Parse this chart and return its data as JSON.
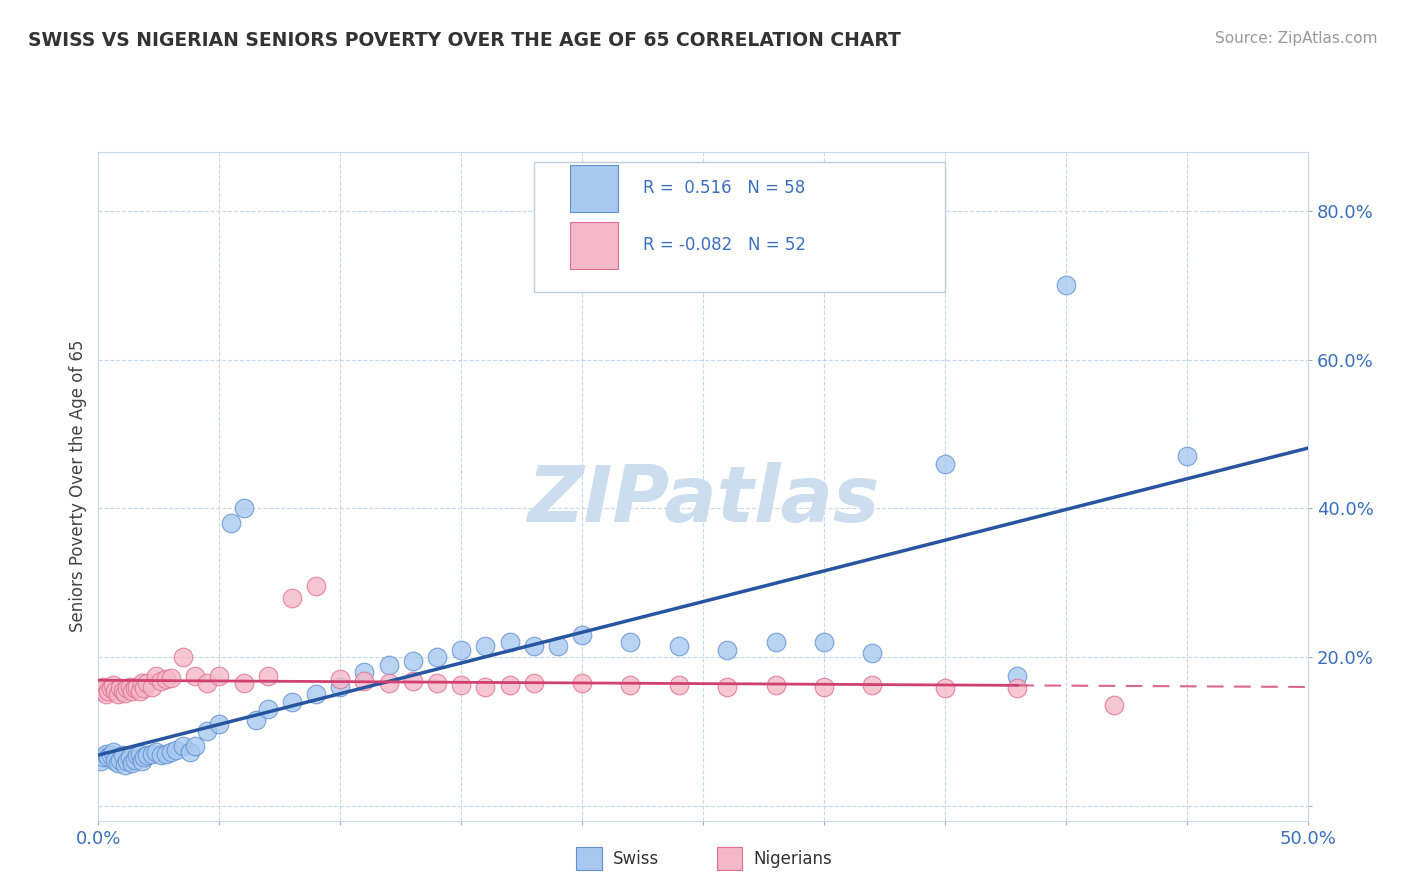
{
  "title": "SWISS VS NIGERIAN SENIORS POVERTY OVER THE AGE OF 65 CORRELATION CHART",
  "source": "Source: ZipAtlas.com",
  "ylabel": "Seniors Poverty Over the Age of 65",
  "xlim": [
    0.0,
    0.5
  ],
  "ylim": [
    -0.02,
    0.88
  ],
  "xticks": [
    0.0,
    0.05,
    0.1,
    0.15,
    0.2,
    0.25,
    0.3,
    0.35,
    0.4,
    0.45,
    0.5
  ],
  "xtick_labels": [
    "0.0%",
    "",
    "",
    "",
    "",
    "",
    "",
    "",
    "",
    "",
    "50.0%"
  ],
  "ytick_positions": [
    0.0,
    0.2,
    0.4,
    0.6,
    0.8
  ],
  "ytick_labels": [
    "",
    "20.0%",
    "40.0%",
    "60.0%",
    "80.0%"
  ],
  "swiss_color": "#a8c8f0",
  "nigerian_color": "#f4b8c8",
  "swiss_edge_color": "#6090d0",
  "nigerian_edge_color": "#e07090",
  "swiss_line_color": "#2855a0",
  "nigerian_line_color": "#d04070",
  "swiss_R": 0.516,
  "swiss_N": 58,
  "nigerian_R": -0.082,
  "nigerian_N": 52,
  "watermark": "ZIPatlas",
  "watermark_color": "#ccddef",
  "legend_swiss": "Swiss",
  "legend_nigerian": "Nigerians",
  "background_color": "#ffffff",
  "grid_color": "#c0d4e8",
  "swiss_x": [
    0.001,
    0.002,
    0.003,
    0.004,
    0.005,
    0.006,
    0.007,
    0.008,
    0.009,
    0.01,
    0.011,
    0.012,
    0.013,
    0.014,
    0.015,
    0.016,
    0.017,
    0.018,
    0.019,
    0.02,
    0.022,
    0.024,
    0.026,
    0.028,
    0.03,
    0.032,
    0.035,
    0.038,
    0.04,
    0.045,
    0.05,
    0.055,
    0.06,
    0.065,
    0.07,
    0.08,
    0.09,
    0.1,
    0.11,
    0.12,
    0.13,
    0.14,
    0.15,
    0.16,
    0.17,
    0.18,
    0.19,
    0.2,
    0.22,
    0.24,
    0.26,
    0.28,
    0.3,
    0.32,
    0.35,
    0.38,
    0.4,
    0.45
  ],
  "swiss_y": [
    0.06,
    0.065,
    0.07,
    0.065,
    0.068,
    0.072,
    0.06,
    0.058,
    0.062,
    0.068,
    0.055,
    0.06,
    0.065,
    0.058,
    0.062,
    0.068,
    0.07,
    0.06,
    0.065,
    0.068,
    0.07,
    0.072,
    0.068,
    0.07,
    0.072,
    0.075,
    0.08,
    0.072,
    0.08,
    0.1,
    0.11,
    0.38,
    0.4,
    0.115,
    0.13,
    0.14,
    0.15,
    0.16,
    0.18,
    0.19,
    0.195,
    0.2,
    0.21,
    0.215,
    0.22,
    0.215,
    0.215,
    0.23,
    0.22,
    0.215,
    0.21,
    0.22,
    0.22,
    0.205,
    0.46,
    0.175,
    0.7,
    0.47
  ],
  "nigerian_x": [
    0.001,
    0.002,
    0.003,
    0.004,
    0.005,
    0.006,
    0.007,
    0.008,
    0.009,
    0.01,
    0.011,
    0.012,
    0.013,
    0.014,
    0.015,
    0.016,
    0.017,
    0.018,
    0.019,
    0.02,
    0.022,
    0.024,
    0.026,
    0.028,
    0.03,
    0.035,
    0.04,
    0.045,
    0.05,
    0.06,
    0.07,
    0.08,
    0.09,
    0.1,
    0.11,
    0.12,
    0.13,
    0.14,
    0.15,
    0.16,
    0.17,
    0.18,
    0.2,
    0.22,
    0.24,
    0.26,
    0.28,
    0.3,
    0.32,
    0.35,
    0.38,
    0.42
  ],
  "nigerian_y": [
    0.155,
    0.16,
    0.15,
    0.155,
    0.158,
    0.162,
    0.155,
    0.15,
    0.158,
    0.155,
    0.152,
    0.158,
    0.16,
    0.155,
    0.158,
    0.16,
    0.155,
    0.165,
    0.158,
    0.165,
    0.16,
    0.175,
    0.168,
    0.17,
    0.172,
    0.2,
    0.175,
    0.165,
    0.175,
    0.165,
    0.175,
    0.28,
    0.295,
    0.17,
    0.168,
    0.165,
    0.168,
    0.165,
    0.162,
    0.16,
    0.162,
    0.165,
    0.165,
    0.162,
    0.162,
    0.16,
    0.162,
    0.16,
    0.162,
    0.158,
    0.158,
    0.135
  ]
}
